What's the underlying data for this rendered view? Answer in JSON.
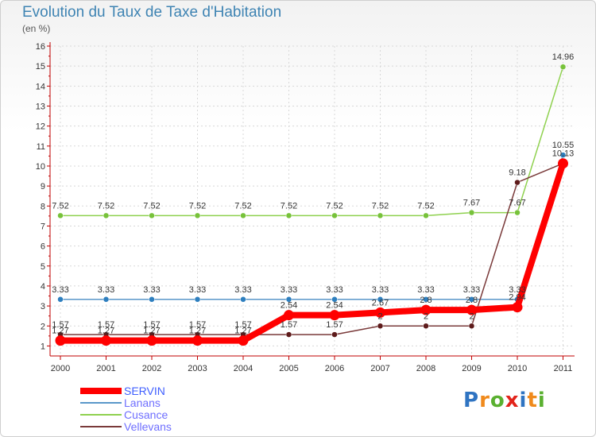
{
  "title": "Evolution du Taux de Taxe d'Habitation",
  "subtitle": "(en %)",
  "logo": [
    "P",
    "r",
    "o",
    "x",
    "i",
    "t",
    "i"
  ],
  "logo_colors": [
    "#2f74c2",
    "#f08a1c",
    "#5ab030",
    "#e2231a",
    "#2f74c2",
    "#f08a1c",
    "#5ab030"
  ],
  "chart_data": {
    "type": "line",
    "categories": [
      "2000",
      "2001",
      "2002",
      "2003",
      "2004",
      "2005",
      "2006",
      "2007",
      "2008",
      "2009",
      "2010",
      "2011"
    ],
    "ylim": [
      0.5,
      16
    ],
    "yticks": [
      "1",
      "2",
      "3",
      "4",
      "5",
      "6",
      "7",
      "8",
      "9",
      "10",
      "11",
      "12",
      "13",
      "14",
      "15",
      "16"
    ],
    "series": [
      {
        "name": "Cusance",
        "color": "#8fd14f",
        "dot": "#77c23a",
        "values": [
          7.52,
          7.52,
          7.52,
          7.52,
          7.52,
          7.52,
          7.52,
          7.52,
          7.52,
          7.67,
          7.67,
          14.96
        ],
        "labels": [
          "7.52",
          "7.52",
          "7.52",
          "7.52",
          "7.52",
          "7.52",
          "7.52",
          "7.52",
          "7.52",
          "7.67",
          "7.67",
          "14.96"
        ]
      },
      {
        "name": "Lanans",
        "color": "#5a97c9",
        "dot": "#2e7fbf",
        "values": [
          3.33,
          3.33,
          3.33,
          3.33,
          3.33,
          3.33,
          3.33,
          3.33,
          3.33,
          3.33,
          3.33,
          10.55
        ],
        "labels": [
          "3.33",
          "3.33",
          "3.33",
          "3.33",
          "3.33",
          "3.33",
          "3.33",
          "3.33",
          "3.33",
          "3.33",
          "3.33",
          "10.55"
        ]
      },
      {
        "name": "Vellevans",
        "color": "#7a3a3a",
        "dot": "#5e1b1b",
        "values": [
          1.57,
          1.57,
          1.57,
          1.57,
          1.57,
          1.57,
          1.57,
          2,
          2,
          2,
          9.18,
          10.13
        ],
        "labels": [
          "1.57",
          "1.57",
          "1.57",
          "1.57",
          "1.57",
          "1.57",
          "1.57",
          "2",
          "2",
          "2",
          "9.18",
          ""
        ]
      },
      {
        "name": "SERVIN",
        "color": "#ff0000",
        "dot": "#ff0000",
        "values": [
          1.27,
          1.27,
          1.27,
          1.27,
          1.27,
          2.54,
          2.54,
          2.67,
          2.8,
          2.8,
          2.94,
          10.13
        ],
        "labels": [
          "1.27",
          "1.27",
          "1.27",
          "1.27",
          "1.27",
          "2.54",
          "2.54",
          "2.67",
          "2.8",
          "2.8",
          "2.94",
          "10.13"
        ]
      }
    ],
    "legend": [
      {
        "name": "SERVIN",
        "color": "#ff0000",
        "width": 8
      },
      {
        "name": "Lanans",
        "color": "#5a97c9",
        "width": 2
      },
      {
        "name": "Cusance",
        "color": "#8fd14f",
        "width": 2
      },
      {
        "name": "Vellevans",
        "color": "#7a3a3a",
        "width": 2
      }
    ]
  }
}
